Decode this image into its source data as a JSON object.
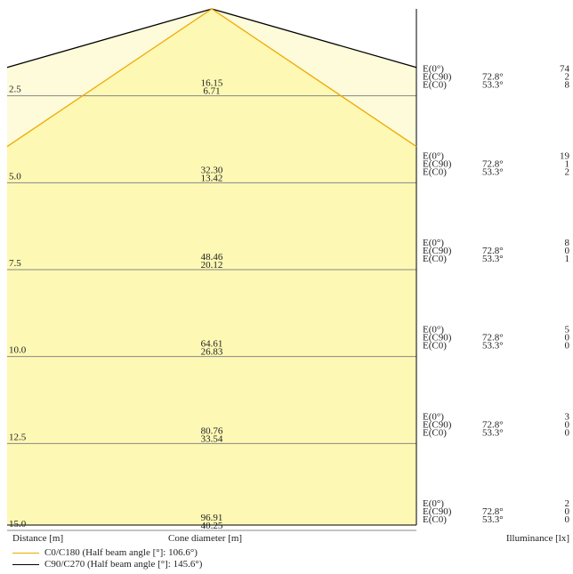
{
  "chart_data": {
    "type": "area",
    "xlabel": "Cone diameter [m]",
    "ylabel": "Distance [m]",
    "right_label": "Illuminance [lx]",
    "colors": {
      "fill": "#fdf8b4",
      "fill_light": "#fdfbd9",
      "c0": "#f0a800",
      "c90": "#000000",
      "axis": "#888888"
    },
    "rows": [
      {
        "distance": "2.5",
        "diameters": [
          "16.15",
          "6.71"
        ],
        "labels": [
          "E(0°)",
          "E(C90)",
          "E(C0)"
        ],
        "angles": [
          "",
          "72.8°",
          "53.3°"
        ],
        "values": [
          "74",
          "2",
          "8"
        ]
      },
      {
        "distance": "5.0",
        "diameters": [
          "32.30",
          "13.42"
        ],
        "labels": [
          "E(0°)",
          "E(C90)",
          "E(C0)"
        ],
        "angles": [
          "",
          "72.8°",
          "53.3°"
        ],
        "values": [
          "19",
          "1",
          "2"
        ]
      },
      {
        "distance": "7.5",
        "diameters": [
          "48.46",
          "20.12"
        ],
        "labels": [
          "E(0°)",
          "E(C90)",
          "E(C0)"
        ],
        "angles": [
          "",
          "72.8°",
          "53.3°"
        ],
        "values": [
          "8",
          "0",
          "1"
        ]
      },
      {
        "distance": "10.0",
        "diameters": [
          "64.61",
          "26.83"
        ],
        "labels": [
          "E(0°)",
          "E(C90)",
          "E(C0)"
        ],
        "angles": [
          "",
          "72.8°",
          "53.3°"
        ],
        "values": [
          "5",
          "0",
          "0"
        ]
      },
      {
        "distance": "12.5",
        "diameters": [
          "80.76",
          "33.54"
        ],
        "labels": [
          "E(0°)",
          "E(C90)",
          "E(C0)"
        ],
        "angles": [
          "",
          "72.8°",
          "53.3°"
        ],
        "values": [
          "3",
          "0",
          "0"
        ]
      },
      {
        "distance": "15.0",
        "diameters": [
          "96.91",
          "40.25"
        ],
        "labels": [
          "E(0°)",
          "E(C90)",
          "E(C0)"
        ],
        "angles": [
          "",
          "72.8°",
          "53.3°"
        ],
        "values": [
          "2",
          "0",
          "0"
        ]
      }
    ],
    "half_beam_angles": {
      "C0_C180": 106.6,
      "C90_C270": 145.6
    },
    "legend": [
      {
        "name": "C0/C180 (Half beam angle [°]: 106.6°)",
        "color": "#f0a800"
      },
      {
        "name": "C90/C270 (Half beam angle [°]: 145.6°)",
        "color": "#000000"
      }
    ]
  }
}
